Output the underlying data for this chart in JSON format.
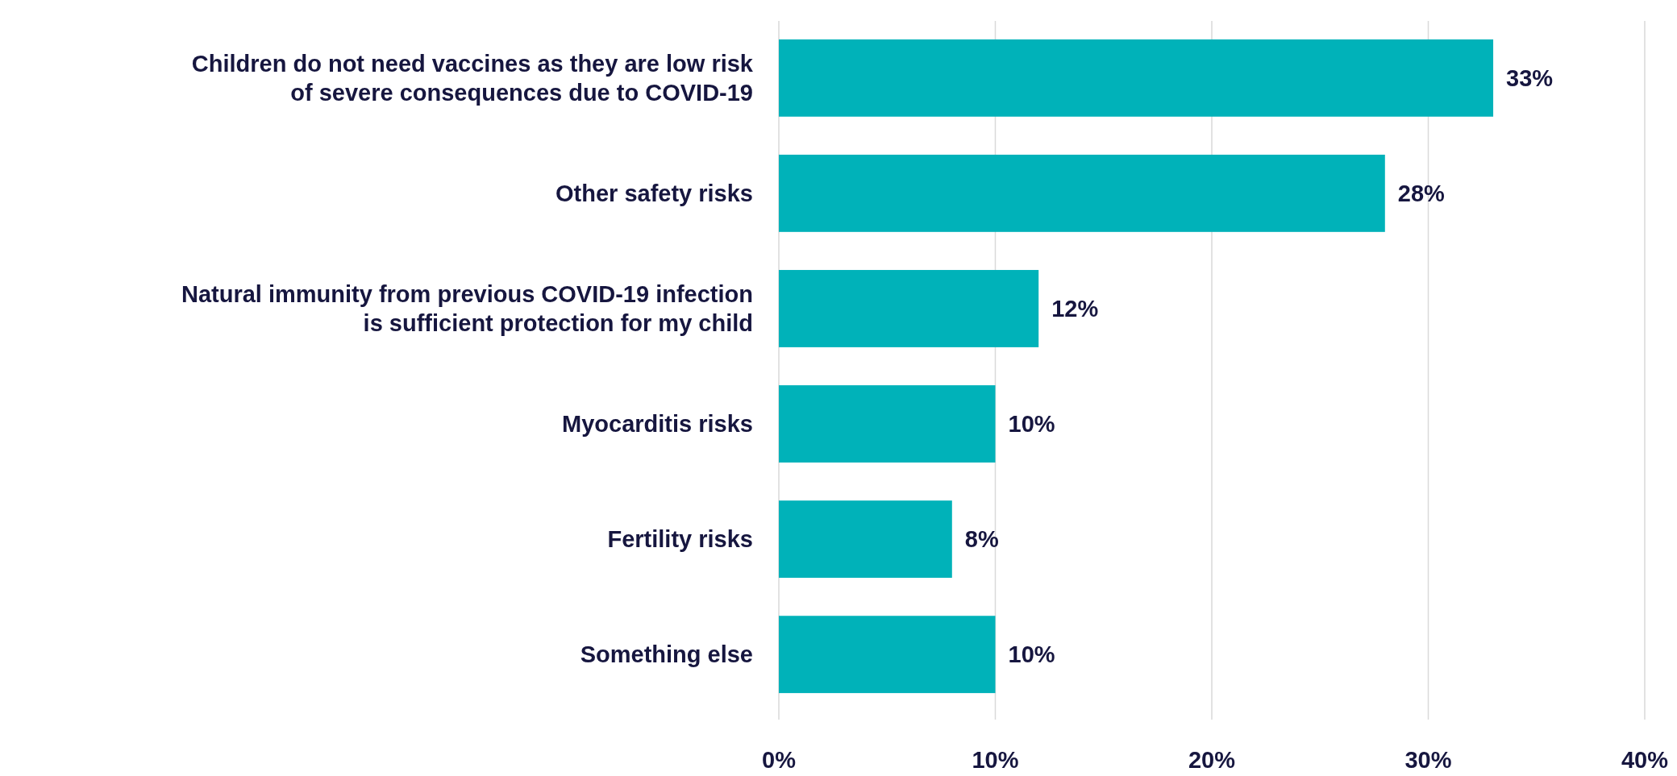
{
  "chart_data": {
    "type": "bar",
    "orientation": "horizontal",
    "categories": [
      "Children do not need vaccines as they are low risk\nof severe consequences due to COVID-19",
      "Other safety risks",
      "Natural immunity from previous COVID-19 infection\nis sufficient protection for my child",
      "Myocarditis risks",
      "Fertility risks",
      "Something else"
    ],
    "values": [
      33,
      28,
      12,
      10,
      8,
      10
    ],
    "color": "#00b2b9",
    "xlim": [
      0,
      40
    ],
    "xticks": [
      {
        "value": 0,
        "label": "0%"
      },
      {
        "value": 10,
        "label": "10%"
      },
      {
        "value": 20,
        "label": "20%"
      },
      {
        "value": 30,
        "label": "30%"
      },
      {
        "value": 40,
        "label": "40%"
      }
    ],
    "value_labels": [
      "33%",
      "28%",
      "12%",
      "10%",
      "8%",
      "10%"
    ],
    "grid": "x"
  }
}
